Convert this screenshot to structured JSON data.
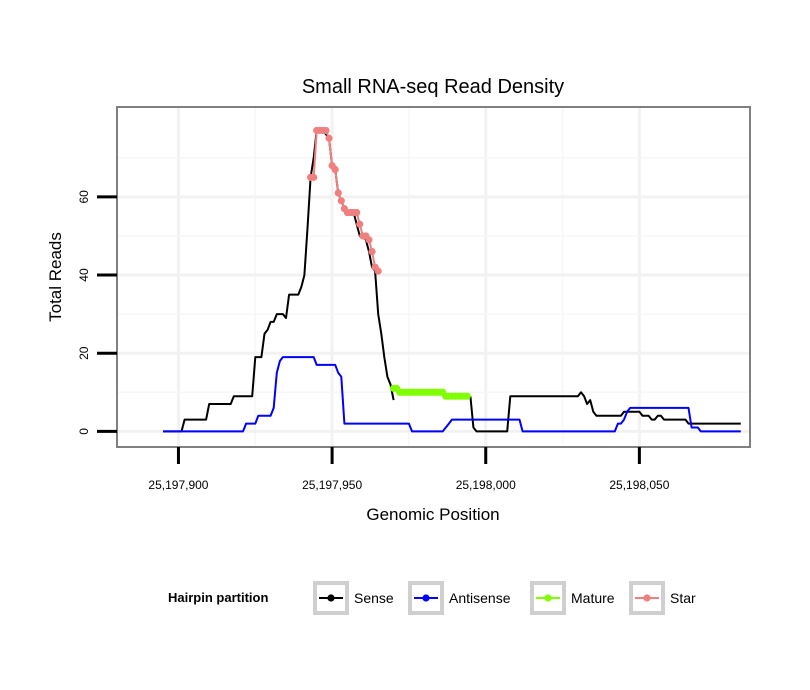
{
  "chart_data": {
    "type": "line",
    "title": "Small RNA-seq Read Density",
    "xlabel": "Genomic Position",
    "ylabel": "Total Reads",
    "xlim": [
      25197880,
      25198086
    ],
    "ylim": [
      -4,
      83
    ],
    "x_ticks": [
      25197900,
      25197950,
      25198000,
      25198050
    ],
    "x_tick_labels": [
      "25,197,900",
      "25,197,950",
      "25,198,000",
      "25,198,050"
    ],
    "y_ticks": [
      0,
      20,
      40,
      60
    ],
    "y_tick_labels": [
      "0",
      "20",
      "40",
      "60"
    ],
    "grid": true,
    "legend": {
      "title": "Hairpin partition",
      "position": "bottom",
      "entries": [
        {
          "name": "Sense",
          "color": "#000000"
        },
        {
          "name": "Antisense",
          "color": "#0000ff"
        },
        {
          "name": "Mature",
          "color": "#7fff00"
        },
        {
          "name": "Star",
          "color": "#f08080"
        }
      ]
    },
    "series": [
      {
        "name": "Sense",
        "color": "#000000",
        "style": "line",
        "points": [
          [
            25197895,
            0
          ],
          [
            25197901,
            0
          ],
          [
            25197902,
            3
          ],
          [
            25197909,
            3
          ],
          [
            25197910,
            7
          ],
          [
            25197917,
            7
          ],
          [
            25197918,
            9
          ],
          [
            25197924,
            9
          ],
          [
            25197925,
            19
          ],
          [
            25197927,
            19
          ],
          [
            25197928,
            25
          ],
          [
            25197929,
            26
          ],
          [
            25197930,
            28
          ],
          [
            25197931,
            28
          ],
          [
            25197932,
            30
          ],
          [
            25197934,
            30
          ],
          [
            25197935,
            29
          ],
          [
            25197936,
            35
          ],
          [
            25197938,
            35
          ],
          [
            25197939,
            35
          ],
          [
            25197940,
            37
          ],
          [
            25197941,
            40
          ],
          [
            25197942,
            52
          ],
          [
            25197943,
            65
          ],
          [
            25197944,
            70
          ],
          [
            25197945,
            77
          ],
          [
            25197946,
            77
          ],
          [
            25197947,
            77
          ],
          [
            25197948,
            76
          ],
          [
            25197949,
            75
          ],
          [
            25197950,
            68
          ],
          [
            25197951,
            67
          ],
          [
            25197952,
            61
          ],
          [
            25197953,
            59
          ],
          [
            25197954,
            57
          ],
          [
            25197955,
            56
          ],
          [
            25197956,
            56
          ],
          [
            25197957,
            56
          ],
          [
            25197958,
            53
          ],
          [
            25197959,
            50
          ],
          [
            25197960,
            50
          ],
          [
            25197961,
            49
          ],
          [
            25197962,
            46
          ],
          [
            25197963,
            42
          ],
          [
            25197964,
            41
          ],
          [
            25197965,
            30
          ],
          [
            25197966,
            25
          ],
          [
            25197967,
            19
          ],
          [
            25197968,
            14
          ],
          [
            25197969,
            12
          ],
          [
            25197970,
            8
          ]
        ]
      },
      {
        "name": "Sense",
        "color": "#000000",
        "style": "line",
        "points": [
          [
            25197995,
            9
          ],
          [
            25197996,
            1
          ],
          [
            25197997,
            0
          ],
          [
            25198007,
            0
          ],
          [
            25198008,
            9
          ],
          [
            25198030,
            9
          ],
          [
            25198031,
            10
          ],
          [
            25198032,
            9
          ],
          [
            25198033,
            7
          ],
          [
            25198034,
            8
          ],
          [
            25198035,
            5
          ],
          [
            25198036,
            4
          ],
          [
            25198044,
            4
          ],
          [
            25198045,
            5
          ],
          [
            25198050,
            5
          ],
          [
            25198051,
            4
          ],
          [
            25198053,
            4
          ],
          [
            25198054,
            3
          ],
          [
            25198055,
            3
          ],
          [
            25198056,
            4
          ],
          [
            25198057,
            4
          ],
          [
            25198058,
            3
          ],
          [
            25198065,
            3
          ],
          [
            25198066,
            2
          ],
          [
            25198083,
            2
          ]
        ]
      },
      {
        "name": "Antisense",
        "color": "#0000ff",
        "style": "line",
        "points": [
          [
            25197895,
            0
          ],
          [
            25197921,
            0
          ],
          [
            25197922,
            2
          ],
          [
            25197925,
            2
          ],
          [
            25197926,
            4
          ],
          [
            25197930,
            4
          ],
          [
            25197931,
            6
          ],
          [
            25197932,
            15
          ],
          [
            25197933,
            18
          ],
          [
            25197934,
            19
          ],
          [
            25197944,
            19
          ],
          [
            25197945,
            17
          ],
          [
            25197951,
            17
          ],
          [
            25197952,
            15
          ],
          [
            25197953,
            14
          ],
          [
            25197954,
            2
          ],
          [
            25197968,
            2
          ],
          [
            25197975,
            2
          ],
          [
            25197976,
            0
          ],
          [
            25197986,
            0
          ],
          [
            25197987,
            1
          ],
          [
            25197988,
            2
          ],
          [
            25197989,
            3
          ],
          [
            25198011,
            3
          ],
          [
            25198012,
            0
          ],
          [
            25198042,
            0
          ],
          [
            25198043,
            2
          ],
          [
            25198044,
            2
          ],
          [
            25198045,
            3
          ],
          [
            25198046,
            5
          ],
          [
            25198047,
            6
          ],
          [
            25198066,
            6
          ],
          [
            25198067,
            1
          ],
          [
            25198069,
            1
          ],
          [
            25198070,
            0
          ],
          [
            25198083,
            0
          ]
        ]
      },
      {
        "name": "Mature",
        "color": "#7fff00",
        "style": "line+points",
        "points": [
          [
            25197970,
            11
          ],
          [
            25197971,
            11
          ],
          [
            25197972,
            10
          ],
          [
            25197973,
            10
          ],
          [
            25197974,
            10
          ],
          [
            25197975,
            10
          ],
          [
            25197976,
            10
          ],
          [
            25197977,
            10
          ],
          [
            25197978,
            10
          ],
          [
            25197979,
            10
          ],
          [
            25197980,
            10
          ],
          [
            25197981,
            10
          ],
          [
            25197982,
            10
          ],
          [
            25197983,
            10
          ],
          [
            25197984,
            10
          ],
          [
            25197985,
            10
          ],
          [
            25197986,
            10
          ],
          [
            25197987,
            9
          ],
          [
            25197988,
            9
          ],
          [
            25197989,
            9
          ],
          [
            25197990,
            9
          ],
          [
            25197991,
            9
          ],
          [
            25197992,
            9
          ],
          [
            25197993,
            9
          ],
          [
            25197994,
            9
          ]
        ]
      },
      {
        "name": "Star",
        "color": "#f08080",
        "style": "line+points",
        "points": [
          [
            25197943,
            65
          ],
          [
            25197944,
            65
          ],
          [
            25197945,
            77
          ],
          [
            25197946,
            77
          ],
          [
            25197947,
            77
          ],
          [
            25197948,
            77
          ],
          [
            25197949,
            75
          ],
          [
            25197950,
            68
          ],
          [
            25197951,
            67
          ],
          [
            25197952,
            61
          ],
          [
            25197953,
            59
          ],
          [
            25197954,
            57
          ],
          [
            25197955,
            56
          ],
          [
            25197956,
            56
          ],
          [
            25197957,
            56
          ],
          [
            25197958,
            56
          ],
          [
            25197959,
            53
          ],
          [
            25197960,
            50
          ],
          [
            25197961,
            50
          ],
          [
            25197962,
            49
          ],
          [
            25197963,
            46
          ],
          [
            25197964,
            42
          ],
          [
            25197965,
            41
          ]
        ]
      }
    ]
  }
}
